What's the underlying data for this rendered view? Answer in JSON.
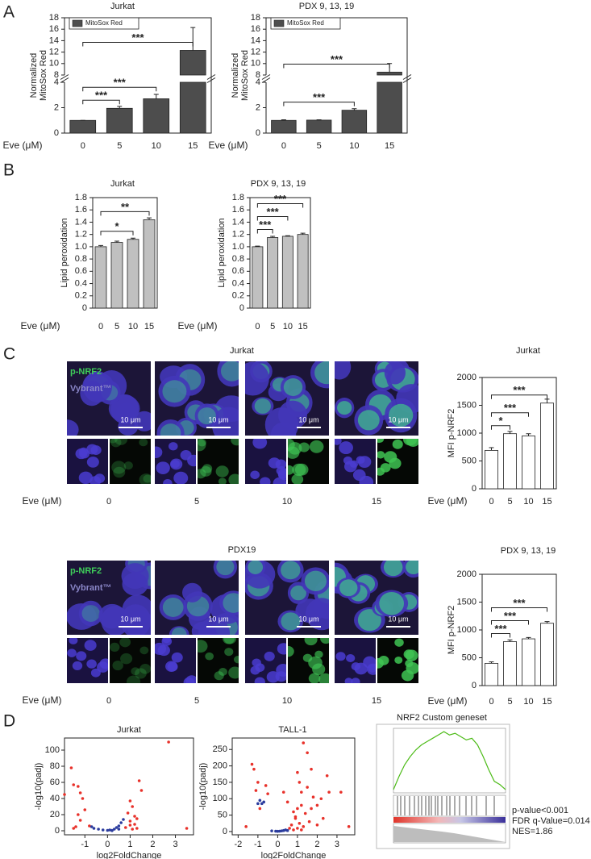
{
  "panel_labels": [
    "A",
    "B",
    "C",
    "D"
  ],
  "chart_data": [
    {
      "type": "bar",
      "title": "Jurkat",
      "categories": [
        "0",
        "5",
        "10",
        "15"
      ],
      "x_label": "Eve (μM)",
      "y_label": [
        "Normalized",
        "MitoSox Red"
      ],
      "series": [
        {
          "name": "MitoSox Red",
          "color": "#4d4d4d",
          "values": [
            1,
            1.95,
            2.7,
            12.3
          ],
          "errors": [
            0,
            0.15,
            0.35,
            4.0
          ]
        }
      ],
      "y_segments": [
        {
          "ylim": [
            0,
            4
          ],
          "yticks": [
            0,
            2,
            4
          ]
        },
        {
          "ylim": [
            8,
            18
          ],
          "yticks": [
            8,
            10,
            12,
            14,
            16,
            18
          ]
        }
      ],
      "comparisons": [
        {
          "pair": [
            "0",
            "5"
          ],
          "label": "***"
        },
        {
          "pair": [
            "0",
            "10"
          ],
          "label": "***"
        },
        {
          "pair": [
            "0",
            "15"
          ],
          "label": "***"
        }
      ]
    },
    {
      "type": "bar",
      "title": "PDX 9, 13, 19",
      "categories": [
        "0",
        "5",
        "10",
        "15"
      ],
      "x_label": "Eve (μM)",
      "y_label": [
        "Normalized",
        "MitoSox Red"
      ],
      "series": [
        {
          "name": "MitoSox Red",
          "color": "#4d4d4d",
          "values": [
            1,
            1.02,
            1.8,
            8.5
          ],
          "errors": [
            0.05,
            0.03,
            0.12,
            1.5
          ]
        }
      ],
      "y_segments": [
        {
          "ylim": [
            0,
            4
          ],
          "yticks": [
            0,
            2,
            4
          ]
        },
        {
          "ylim": [
            8,
            18
          ],
          "yticks": [
            8,
            10,
            12,
            14,
            16,
            18
          ]
        }
      ],
      "comparisons": [
        {
          "pair": [
            "0",
            "10"
          ],
          "label": "***"
        },
        {
          "pair": [
            "0",
            "15"
          ],
          "label": "***"
        }
      ]
    },
    {
      "type": "bar",
      "title": "Jurkat",
      "categories": [
        "0",
        "5",
        "10",
        "15"
      ],
      "x_label": "Eve (μM)",
      "y_label": [
        "Lipid peroxidation"
      ],
      "color": "#c0c0c0",
      "values": [
        1.0,
        1.07,
        1.12,
        1.44
      ],
      "errors": [
        0.02,
        0.02,
        0.02,
        0.03
      ],
      "ylim": [
        0,
        1.8
      ],
      "yticks": [
        0,
        0.2,
        0.4,
        0.6,
        0.8,
        {
          "value": 1,
          "label": "1.0"
        },
        1.2,
        1.4,
        1.6,
        1.8
      ],
      "comparisons": [
        {
          "pair": [
            "0",
            "10"
          ],
          "label": "*"
        },
        {
          "pair": [
            "0",
            "15"
          ],
          "label": "**"
        }
      ]
    },
    {
      "type": "bar",
      "title": "PDX 9, 13, 19",
      "categories": [
        "0",
        "5",
        "10",
        "15"
      ],
      "x_label": "Eve (μM)",
      "y_label": [
        "Lipid peroxidation"
      ],
      "color": "#c0c0c0",
      "values": [
        1.0,
        1.15,
        1.17,
        1.2
      ],
      "errors": [
        0.01,
        0.02,
        0.01,
        0.02
      ],
      "ylim": [
        0,
        1.8
      ],
      "yticks": [
        0,
        0.2,
        0.4,
        0.6,
        0.8,
        {
          "value": 1,
          "label": "1.0"
        },
        1.2,
        1.4,
        1.6,
        1.8
      ],
      "comparisons": [
        {
          "pair": [
            "0",
            "5"
          ],
          "label": "***"
        },
        {
          "pair": [
            "0",
            "10"
          ],
          "label": "***"
        },
        {
          "pair": [
            "0",
            "15"
          ],
          "label": "***"
        }
      ]
    },
    {
      "type": "bar",
      "title": "Jurkat",
      "categories": [
        "0",
        "5",
        "10",
        "15"
      ],
      "x_label": "Eve (μM)",
      "y_label": [
        "MFI p-NRF2"
      ],
      "color": "#ffffff",
      "values": [
        690,
        990,
        950,
        1540
      ],
      "errors": [
        50,
        40,
        40,
        70
      ],
      "ylim": [
        0,
        2000
      ],
      "yticks": [
        0,
        500,
        1000,
        1500,
        2000
      ],
      "comparisons": [
        {
          "pair": [
            "0",
            "5"
          ],
          "label": "*"
        },
        {
          "pair": [
            "0",
            "10"
          ],
          "label": "***"
        },
        {
          "pair": [
            "0",
            "15"
          ],
          "label": "***"
        }
      ]
    },
    {
      "type": "bar",
      "title": "PDX 9, 13, 19",
      "categories": [
        "0",
        "5",
        "10",
        "15"
      ],
      "x_label": "Eve (μM)",
      "y_label": [
        "MFI p-NRF2"
      ],
      "color": "#ffffff",
      "values": [
        400,
        790,
        840,
        1120
      ],
      "errors": [
        25,
        30,
        25,
        30
      ],
      "ylim": [
        0,
        2000
      ],
      "yticks": [
        0,
        500,
        1000,
        1500,
        2000
      ],
      "comparisons": [
        {
          "pair": [
            "0",
            "5"
          ],
          "label": "***"
        },
        {
          "pair": [
            "0",
            "10"
          ],
          "label": "***"
        },
        {
          "pair": [
            "0",
            "15"
          ],
          "label": "***"
        }
      ]
    },
    {
      "type": "scatter",
      "title": "Jurkat",
      "x_label": "log2FoldChange",
      "y_label": "-log10(padj)",
      "xlim": [
        -1.9,
        3.8
      ],
      "xticks": [
        -1,
        0,
        1,
        2,
        3
      ],
      "ylim": [
        -5,
        115
      ],
      "yticks": [
        0,
        20,
        40,
        60,
        80,
        100
      ],
      "series": [
        {
          "color": "#e8312a",
          "x": [
            -1.9,
            -1.6,
            -1.5,
            -1.3,
            -1.2,
            -1.1,
            -1.0,
            -1.3,
            -1.2,
            -1.4,
            -1.5,
            -0.8,
            1.0,
            1.1,
            0.9,
            1.2,
            1.0,
            1.2,
            1.3,
            1.1,
            1.4,
            1.5,
            2.7,
            3.5,
            1.0,
            0.8,
            1.3
          ],
          "values": [
            45,
            78,
            57,
            55,
            47,
            40,
            26,
            20,
            13,
            5,
            3,
            6,
            37,
            30,
            22,
            18,
            12,
            8,
            3,
            2,
            62,
            50,
            110,
            3,
            7,
            4,
            15
          ]
        },
        {
          "color": "#2b3c9e",
          "x": [
            -0.7,
            -0.6,
            -0.4,
            -0.2,
            0,
            0.1,
            0.2,
            0.3,
            0.4,
            0.5,
            0.6,
            0.7,
            0.5,
            0.2
          ],
          "values": [
            5,
            3,
            2,
            1,
            0.5,
            1,
            0.5,
            2,
            4,
            6,
            10,
            14,
            2,
            0.2
          ]
        }
      ]
    },
    {
      "type": "scatter",
      "title": "TALL-1",
      "x_label": "log2FoldChange",
      "y_label": "-log10(padj)",
      "xlim": [
        -2.3,
        3.9
      ],
      "xticks": [
        -2,
        -1,
        0,
        1,
        2,
        3
      ],
      "ylim": [
        -10,
        285
      ],
      "yticks": [
        0,
        50,
        100,
        150,
        200,
        250
      ],
      "series": [
        {
          "color": "#e8312a",
          "x": [
            -1.3,
            -1.2,
            -1.0,
            -1.1,
            -0.6,
            -0.5,
            -0.9,
            -1.6,
            0.3,
            0.5,
            0.8,
            0.9,
            1.0,
            1.1,
            1.2,
            1.3,
            1.5,
            1.7,
            1.5,
            1.8,
            1.2,
            1.0,
            0.9,
            1.1,
            1.3,
            1.0,
            1.4,
            1.6,
            2.0,
            2.2,
            2.5,
            2.6,
            2.3,
            3.2,
            3.6,
            0.7,
            1.7,
            2.0,
            0.6,
            1.2,
            0.8
          ],
          "values": [
            205,
            190,
            150,
            125,
            140,
            115,
            70,
            15,
            120,
            90,
            60,
            45,
            180,
            150,
            120,
            270,
            240,
            190,
            135,
            105,
            80,
            70,
            40,
            25,
            15,
            10,
            55,
            30,
            80,
            100,
            170,
            120,
            40,
            120,
            15,
            20,
            70,
            20,
            10,
            5,
            5
          ]
        },
        {
          "color": "#2b3c9e",
          "x": [
            -0.9,
            -0.8,
            -1.0,
            -0.7,
            -0.3,
            -0.1,
            0,
            0.1,
            0.2,
            0.3,
            0.4,
            0.5
          ],
          "values": [
            95,
            85,
            85,
            90,
            2,
            1,
            0.5,
            1,
            2,
            3,
            5,
            3
          ]
        }
      ]
    },
    {
      "type": "line",
      "title": "NRF2 Custom geneset",
      "color": "#4cbb17",
      "ylim": [
        -0.02,
        0.37
      ],
      "values": [
        0.0,
        0.08,
        0.15,
        0.2,
        0.24,
        0.27,
        0.29,
        0.31,
        0.33,
        0.35,
        0.33,
        0.34,
        0.32,
        0.3,
        0.31,
        0.27,
        0.2,
        0.12,
        0.05,
        0.03,
        0.0
      ],
      "annotations": [
        "p-value<0.001",
        "FDR q-Value=0.014",
        "NES=1.86"
      ]
    }
  ],
  "microscopy": [
    {
      "title": "Jurkat",
      "channels": [
        "p-NRF2",
        "Vybrant™"
      ],
      "scale_bar": "10 μm",
      "x_label": "Eve (μM)",
      "conditions": [
        "0",
        "5",
        "10",
        "15"
      ]
    },
    {
      "title": "PDX19",
      "channels": [
        "p-NRF2",
        "Vybrant™"
      ],
      "scale_bar": "10 μm",
      "x_label": "Eve (μM)",
      "conditions": [
        "0",
        "5",
        "10",
        "15"
      ]
    }
  ]
}
